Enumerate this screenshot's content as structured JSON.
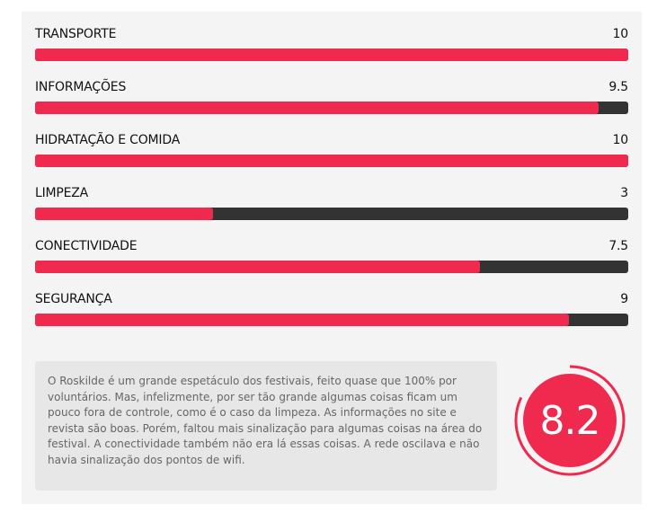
{
  "ratings": [
    {
      "label": "TRANSPORTE",
      "score_text": "10",
      "value": 10
    },
    {
      "label": "INFORMAÇÕES",
      "score_text": "9.5",
      "value": 9.5
    },
    {
      "label": "HIDRATAÇÃO E COMIDA",
      "score_text": "10",
      "value": 10
    },
    {
      "label": "LIMPEZA",
      "score_text": "3",
      "value": 3
    },
    {
      "label": "CONECTIVIDADE",
      "score_text": "7.5",
      "value": 7.5
    },
    {
      "label": "SEGURANÇA",
      "score_text": "9",
      "value": 9
    }
  ],
  "max_value": 10,
  "summary": {
    "text": "O Roskilde é um grande espetáculo dos festivais, feito quase que 100% por voluntários. Mas, infelizmente, por ser tão grande algumas coisas ficam um pouco fora de controle, como é o caso da limpeza. As informações no site e revista são boas. Porém, faltou mais sinalização para algumas coisas na área do festival. A conectividade também não era lá essas coisas. A rede oscilava e não havia sinalização dos pontos de wifi."
  },
  "overall": {
    "score_text": "8.2",
    "value": 8.2
  },
  "colors": {
    "accent": "#f0294f",
    "track": "#333333",
    "panel": "#f4f4f4"
  }
}
